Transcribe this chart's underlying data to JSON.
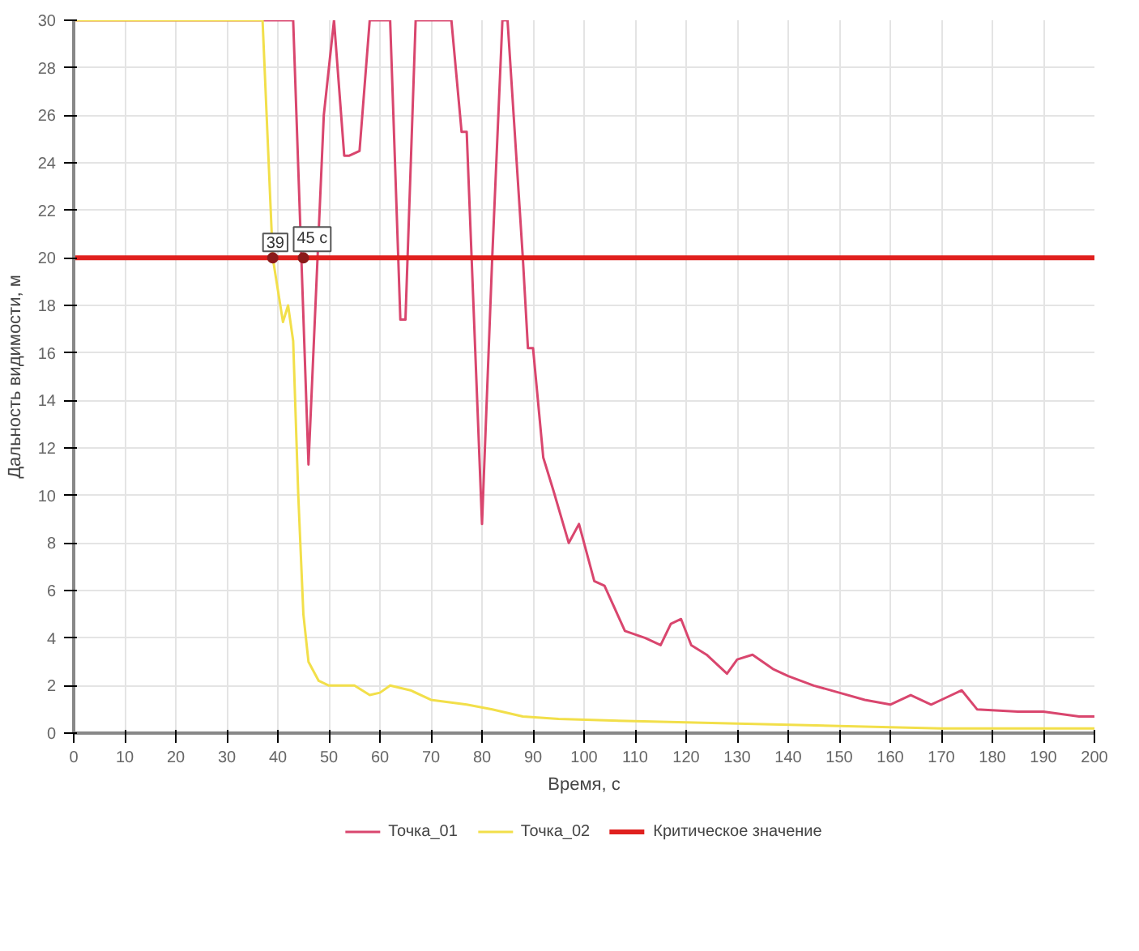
{
  "chart_data": {
    "type": "line",
    "xlabel": "Время, с",
    "ylabel": "Дальность видимости, м",
    "xlim": [
      0,
      200
    ],
    "ylim": [
      0,
      30
    ],
    "xticks": [
      0,
      10,
      20,
      30,
      40,
      50,
      60,
      70,
      80,
      90,
      100,
      110,
      120,
      130,
      140,
      150,
      160,
      170,
      180,
      190,
      200
    ],
    "yticks": [
      0,
      2,
      4,
      6,
      8,
      10,
      12,
      14,
      16,
      18,
      20,
      22,
      24,
      26,
      28,
      30
    ],
    "grid": true,
    "legend": "bottom",
    "series": [
      {
        "name": "Точка_01",
        "color": "#d9466e",
        "x": [
          0,
          43,
          46,
          49,
          51,
          53,
          54,
          56,
          58,
          62,
          64,
          65,
          67,
          74,
          76,
          77,
          80,
          82,
          84,
          85,
          88,
          89,
          90,
          92,
          94,
          97,
          99,
          102,
          104,
          108,
          112,
          115,
          117,
          119,
          121,
          124,
          128,
          130,
          133,
          137,
          140,
          145,
          150,
          155,
          160,
          164,
          168,
          171,
          174,
          177,
          185,
          190,
          197,
          200
        ],
        "values": [
          30,
          30,
          11.3,
          26,
          30,
          24.3,
          24.3,
          24.5,
          30,
          30,
          17.4,
          17.4,
          30,
          30,
          25.3,
          25.3,
          8.8,
          20,
          30,
          30,
          20,
          16.2,
          16.2,
          11.6,
          10.2,
          8.0,
          8.8,
          6.4,
          6.2,
          4.3,
          4.0,
          3.7,
          4.6,
          4.8,
          3.7,
          3.3,
          2.5,
          3.1,
          3.3,
          2.7,
          2.4,
          2.0,
          1.7,
          1.4,
          1.2,
          1.6,
          1.2,
          1.5,
          1.8,
          1.0,
          0.9,
          0.9,
          0.7,
          0.7
        ]
      },
      {
        "name": "Точка_02",
        "color": "#f2df4a",
        "x": [
          0,
          37,
          39,
          41,
          42,
          43,
          44,
          45,
          46,
          48,
          50,
          55,
          58,
          60,
          62,
          66,
          70,
          77,
          82,
          88,
          95,
          110,
          130,
          150,
          170,
          200
        ],
        "values": [
          30,
          30,
          20,
          17.3,
          18,
          16.5,
          10,
          5,
          3,
          2.2,
          2.0,
          2.0,
          1.6,
          1.7,
          2.0,
          1.8,
          1.4,
          1.2,
          1.0,
          0.7,
          0.6,
          0.5,
          0.4,
          0.3,
          0.2,
          0.2
        ]
      }
    ],
    "ref_lines": [
      {
        "axis": "y",
        "value": 20,
        "label": "Критическое значение",
        "color": "#e0201e"
      }
    ],
    "annotations": [
      {
        "text": "39",
        "x": 39,
        "y": 20
      },
      {
        "text": "45 с",
        "x": 45,
        "y": 20
      }
    ]
  }
}
